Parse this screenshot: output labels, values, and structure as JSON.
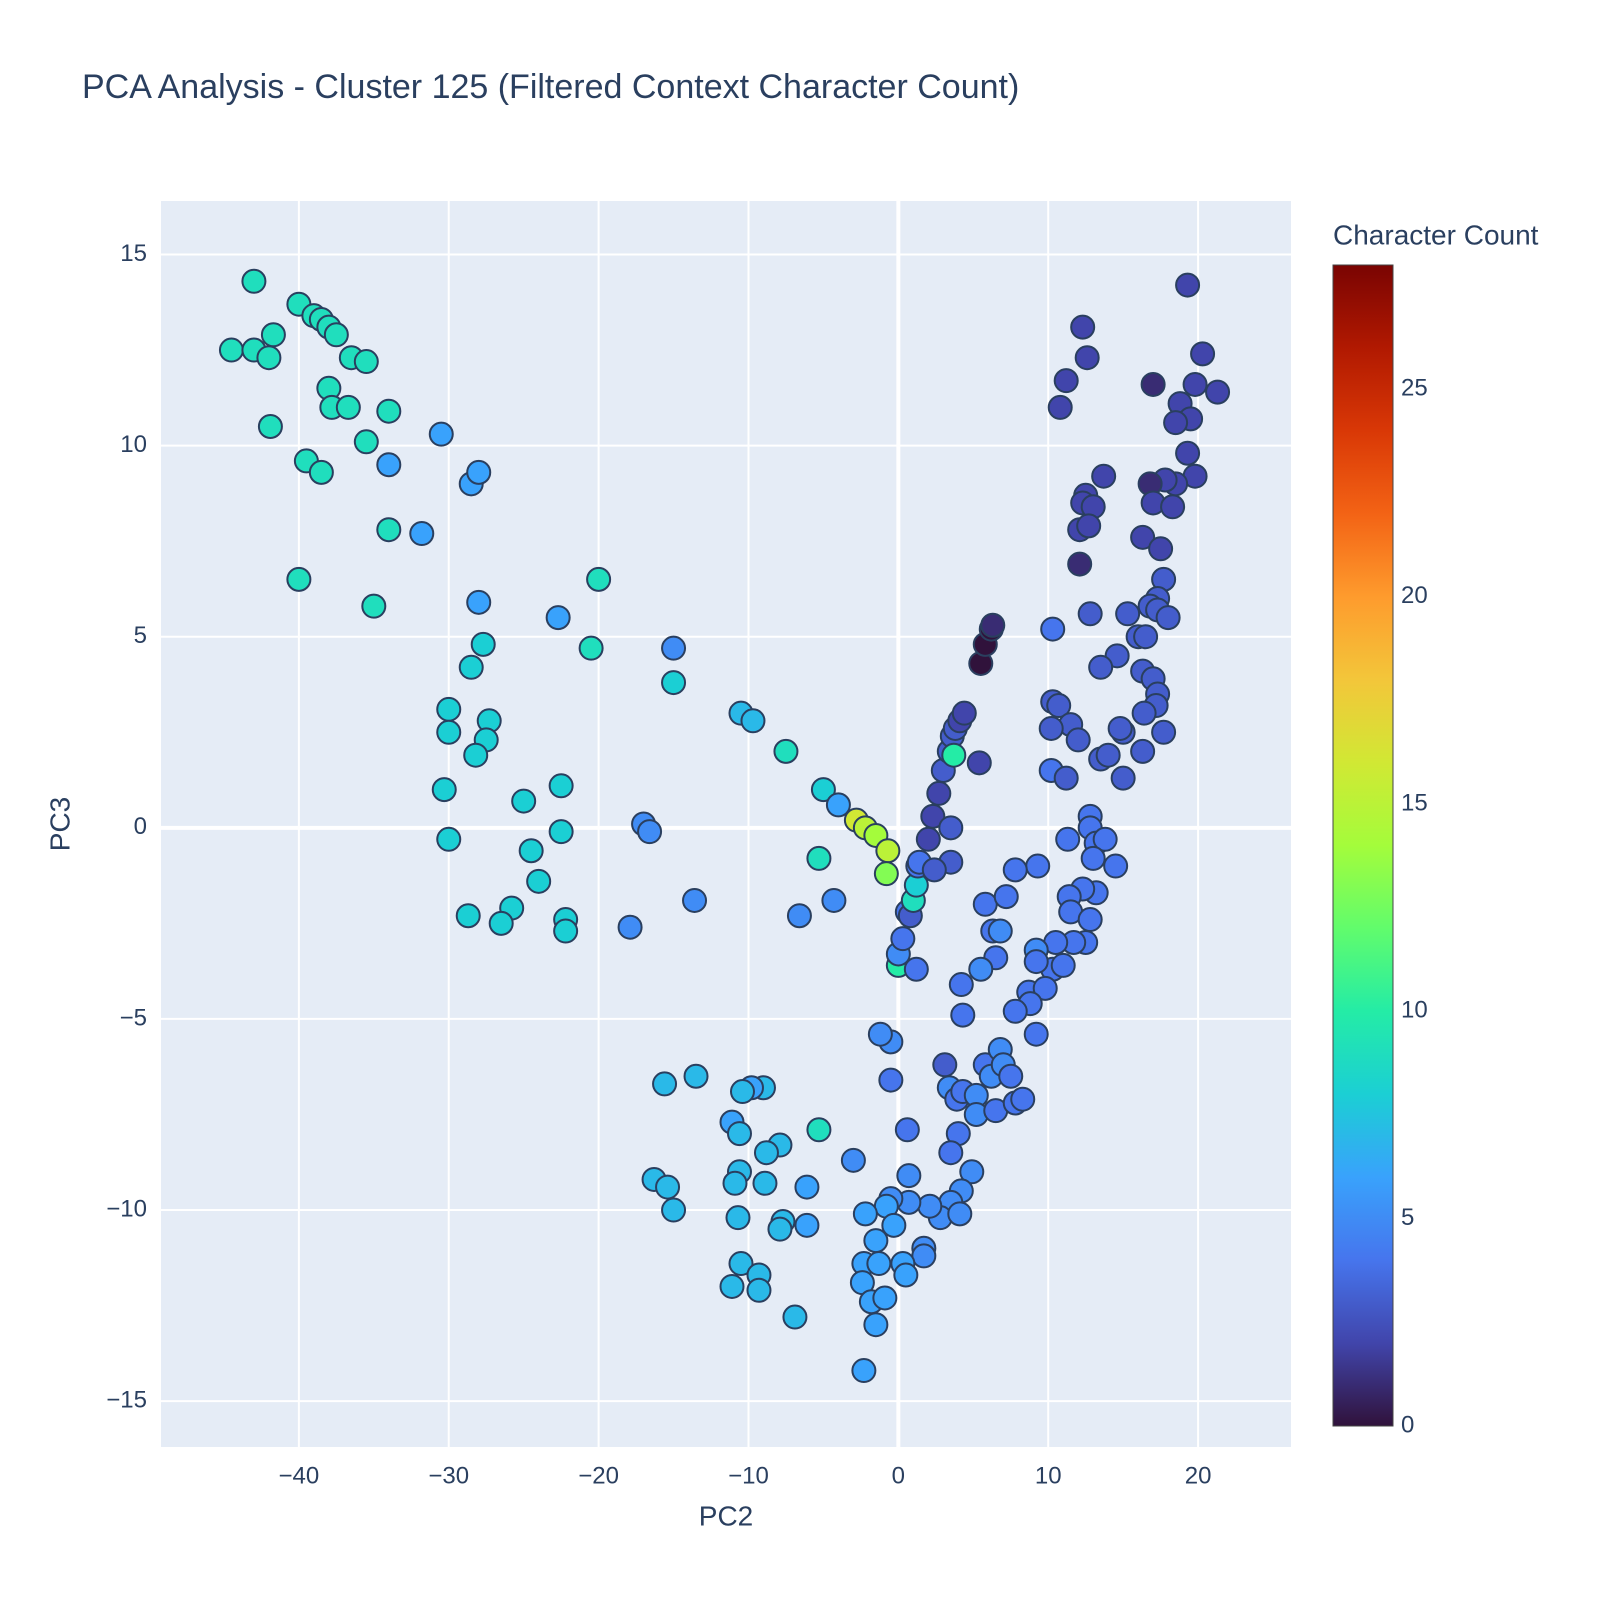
{
  "chart_data": {
    "type": "scatter",
    "title": "PCA Analysis - Cluster 125 (Filtered Context Character Count)",
    "x_label": "PC2",
    "y_label": "PC3",
    "colorbar_title": "Character Count",
    "xlim": [
      -49.2,
      26.2
    ],
    "ylim": [
      -16.2,
      16.4
    ],
    "xticks": [
      {
        "value": -40,
        "label": "−40"
      },
      {
        "value": -30,
        "label": "−30"
      },
      {
        "value": -20,
        "label": "−20"
      },
      {
        "value": -10,
        "label": "−10"
      },
      0,
      10,
      20
    ],
    "yticks": [
      {
        "value": -15,
        "label": "−15"
      },
      {
        "value": -10,
        "label": "−10"
      },
      {
        "value": -5,
        "label": "−5"
      },
      0,
      5,
      10,
      15
    ],
    "grid": true,
    "plot_bgcolor": "#e5ecf6",
    "marker_line_color": "#2a3f5f",
    "clim": [
      0,
      28
    ],
    "cticks": [
      0,
      5,
      10,
      15,
      20,
      25
    ],
    "colorscale": [
      "#30123b",
      "#4145ab",
      "#4675ed",
      "#39a2fc",
      "#1bcfd4",
      "#24eca6",
      "#61fc6c",
      "#a4fc3b",
      "#d1e834",
      "#f3c63a",
      "#fe9b2d",
      "#f36315",
      "#d93806",
      "#b11901",
      "#7a0402"
    ],
    "x": [
      -44.5,
      -43,
      -43,
      -42,
      -41.7,
      -41.9,
      -40,
      -39,
      -38.5,
      -38,
      -37.5,
      -36.5,
      -35.5,
      -38,
      -37.8,
      -36.7,
      -34,
      -35.5,
      -39.5,
      -38.5,
      -34,
      -34,
      -40,
      -35,
      -30.5,
      -28.5,
      -28,
      -31.8,
      -28,
      -27.7,
      -28.5,
      -30,
      -30,
      -27.3,
      -27.5,
      -28.2,
      -30.3,
      -30,
      -25,
      -22.5,
      -24.5,
      -22.5,
      -24,
      -28.7,
      -25.8,
      -26.5,
      -22.2,
      -22.2,
      -22.7,
      -20,
      -20.5,
      -15,
      -15,
      -10.5,
      -9.7,
      -7.5,
      -5,
      -4,
      -2.8,
      -2.2,
      -1.5,
      -0.7,
      -0.8,
      -5.3,
      -17,
      -16.6,
      -13.6,
      -17.9,
      -6.6,
      -4.3,
      0,
      0,
      0.3,
      0.6,
      0.8,
      1,
      1.2,
      1.3,
      1.4,
      2,
      2.3,
      2.7,
      3,
      3.4,
      3.6,
      3.8,
      4.1,
      4.4,
      3.7,
      3.5,
      3.5,
      2.4,
      1.2,
      5.4,
      5.5,
      5.8,
      6.2,
      6.3,
      19.3,
      12.3,
      11.2,
      12.6,
      10.8,
      17,
      20.3,
      21.3,
      19.8,
      18.8,
      19.5,
      18.5,
      19.3,
      19.8,
      18.5,
      17.8,
      16.8,
      17,
      18.3,
      13.7,
      12.5,
      12.3,
      13,
      12.1,
      12.7,
      12.1,
      16.3,
      17.5,
      17.7,
      17.3,
      16.8,
      15.3,
      16,
      16.5,
      17.3,
      18,
      12.8,
      10.3,
      14.6,
      13.5,
      16.3,
      17,
      17.3,
      17.2,
      16.4,
      10.3,
      10.7,
      11.5,
      10.2,
      12,
      15,
      14.8,
      13.5,
      14,
      16.3,
      17.7,
      15,
      10.2,
      11.2,
      12.8,
      12.8,
      13.2,
      13.8,
      11.3,
      13,
      14.5,
      9.3,
      7.8,
      13.2,
      12.3,
      11.4,
      11.5,
      12.8,
      12.5,
      11.7,
      10.5,
      9.2,
      10.3,
      11,
      9.2,
      8.7,
      9.8,
      8.8,
      7.8,
      9.2,
      5.8,
      7.2,
      6.3,
      6.8,
      6.5,
      5.5,
      4.2,
      4.3,
      3.1,
      3.4,
      3.9,
      4.3,
      5.2,
      5.2,
      5.8,
      6.2,
      6.8,
      7,
      6.5,
      7.5,
      7.8,
      8.3,
      4,
      3.5,
      4.9,
      4.2,
      3.5,
      2.8,
      4.1,
      2.1,
      1.7,
      1.7,
      0.6,
      -0.5,
      -1.2,
      -0.5,
      -3,
      0.7,
      0.7,
      -0.5,
      -0.8,
      -2.2,
      -0.3,
      -1.5,
      -2.3,
      -1.3,
      0.3,
      0.5,
      -2.4,
      -1.8,
      -0.9,
      -1.5,
      -2.3,
      -6.1,
      -6.1,
      -7.9,
      -8.8,
      -5.3,
      -9,
      -9.8,
      -10.4,
      -13.5,
      -15.6,
      -11.1,
      -10.6,
      -10.6,
      -10.9,
      -10.7,
      -8.9,
      -7.7,
      -7.9,
      -16.3,
      -15.4,
      -15,
      -10.5,
      -11.1,
      -9.3,
      -9.3,
      -6.9
    ],
    "y": [
      12.5,
      14.3,
      12.5,
      12.3,
      12.9,
      10.5,
      13.7,
      13.4,
      13.3,
      13.1,
      12.9,
      12.3,
      12.2,
      11.5,
      11,
      11,
      10.9,
      10.1,
      9.6,
      9.3,
      9.5,
      7.8,
      6.5,
      5.8,
      10.3,
      9,
      9.3,
      7.7,
      5.9,
      4.8,
      4.2,
      3.1,
      2.5,
      2.8,
      2.3,
      1.9,
      1,
      -0.3,
      0.7,
      1.1,
      -0.6,
      -0.1,
      -1.4,
      -2.3,
      -2.1,
      -2.5,
      -2.4,
      -2.7,
      5.5,
      6.5,
      4.7,
      4.7,
      3.8,
      3,
      2.8,
      2,
      1,
      0.6,
      0.2,
      0,
      -0.2,
      -0.6,
      -1.2,
      -0.8,
      0.1,
      -0.1,
      -1.9,
      -2.6,
      -2.3,
      -1.9,
      -3.6,
      -3.3,
      -2.9,
      -2.2,
      -2.3,
      -1.9,
      -1.5,
      -1,
      -0.9,
      -0.3,
      0.3,
      0.9,
      1.5,
      2,
      2.4,
      2.6,
      2.8,
      3,
      1.9,
      0,
      -0.9,
      -1.1,
      -3.7,
      1.7,
      4.3,
      4.8,
      5.2,
      5.3,
      14.2,
      13.1,
      11.7,
      12.3,
      11,
      11.6,
      12.4,
      11.4,
      11.6,
      11.1,
      10.7,
      10.6,
      9.8,
      9.2,
      9,
      9.1,
      9,
      8.5,
      8.4,
      9.2,
      8.7,
      8.5,
      8.4,
      7.8,
      7.9,
      6.9,
      7.6,
      7.3,
      6.5,
      6,
      5.8,
      5.6,
      5,
      5,
      5.7,
      5.5,
      5.6,
      5.2,
      4.5,
      4.2,
      4.1,
      3.9,
      3.5,
      3.2,
      3,
      3.3,
      3.2,
      2.7,
      2.6,
      2.3,
      2.5,
      2.6,
      1.8,
      1.9,
      2,
      2.5,
      1.3,
      1.5,
      1.3,
      0.3,
      0,
      -0.4,
      -0.3,
      -0.3,
      -0.8,
      -1,
      -1,
      -1.1,
      -1.7,
      -1.6,
      -1.8,
      -2.2,
      -2.4,
      -3,
      -3,
      -3,
      -3.2,
      -3.7,
      -3.6,
      -3.5,
      -4.3,
      -4.2,
      -4.6,
      -4.8,
      -5.4,
      -2,
      -1.8,
      -2.7,
      -2.7,
      -3.4,
      -3.7,
      -4.1,
      -4.9,
      -6.2,
      -6.8,
      -7.1,
      -6.9,
      -7,
      -7.5,
      -6.2,
      -6.5,
      -5.8,
      -6.2,
      -7.4,
      -6.5,
      -7.2,
      -7.1,
      -8,
      -8.5,
      -9,
      -9.5,
      -9.8,
      -10.2,
      -10.1,
      -9.9,
      -11,
      -11.2,
      -7.9,
      -5.6,
      -5.4,
      -6.6,
      -8.7,
      -9.1,
      -9.8,
      -9.7,
      -9.9,
      -10.1,
      -10.4,
      -10.8,
      -11.4,
      -11.4,
      -11.4,
      -11.7,
      -11.9,
      -12.4,
      -12.3,
      -13,
      -14.2,
      -9.4,
      -10.4,
      -8.3,
      -8.5,
      -7.9,
      -6.8,
      -6.8,
      -6.9,
      -6.5,
      -6.7,
      -7.7,
      -8,
      -9,
      -9.3,
      -10.2,
      -9.3,
      -10.3,
      -10.5,
      -9.2,
      -9.4,
      -10,
      -11.4,
      -12,
      -11.7,
      -12.1,
      -12.8
    ],
    "color_values": [
      9,
      9,
      9,
      9,
      9,
      9,
      9,
      9,
      9,
      9,
      9,
      9,
      9,
      9,
      9,
      9,
      9,
      9,
      9,
      9,
      6,
      9,
      9,
      9,
      6,
      6,
      6,
      6,
      6,
      8,
      8,
      8,
      8,
      8,
      8,
      8,
      8,
      8,
      8,
      8,
      8,
      8,
      8,
      8,
      8,
      8,
      8,
      8,
      6,
      9,
      9,
      5,
      8,
      7,
      7,
      9,
      8,
      6,
      16,
      15,
      14,
      15,
      13,
      9,
      5,
      5,
      5,
      5,
      5,
      5,
      10,
      5,
      4,
      4,
      3,
      9,
      8,
      4,
      4,
      2,
      2,
      2,
      3,
      3,
      3,
      3,
      2,
      2,
      10,
      3,
      3,
      3,
      4,
      2,
      0,
      0,
      0,
      1,
      2,
      2,
      2,
      2,
      2,
      1,
      2,
      2,
      2,
      2,
      2,
      2,
      2,
      2,
      2,
      2,
      1,
      2,
      2,
      2,
      2,
      2,
      2,
      2,
      2,
      1,
      2,
      2,
      3,
      3,
      3,
      3,
      3,
      3,
      3,
      3,
      3,
      4,
      3,
      3,
      3,
      3,
      3,
      3,
      3,
      3,
      3,
      3,
      3,
      3,
      3,
      3,
      3,
      3,
      3,
      3,
      3,
      4,
      3,
      4,
      4,
      4,
      4,
      4,
      4,
      4,
      4,
      4,
      4,
      4,
      4,
      4,
      4,
      4,
      4,
      4,
      5,
      4,
      4,
      4,
      4,
      4,
      4,
      4,
      4,
      4,
      4,
      4,
      5,
      4,
      5,
      4,
      4,
      3,
      5,
      4,
      4,
      5,
      5,
      4,
      5,
      5,
      5,
      4,
      4,
      4,
      4,
      4,
      4,
      5,
      5,
      5,
      5,
      5,
      5,
      5,
      5,
      4,
      5,
      5,
      4,
      5,
      5,
      5,
      5,
      6,
      6,
      6,
      6,
      6,
      6,
      6,
      6,
      6,
      6,
      6,
      6,
      6,
      6,
      6,
      7,
      7,
      9,
      7,
      6,
      7,
      7,
      7,
      6,
      7,
      7,
      7,
      7,
      7,
      7,
      7,
      7,
      7,
      7,
      7,
      7,
      7,
      7,
      7
    ]
  }
}
